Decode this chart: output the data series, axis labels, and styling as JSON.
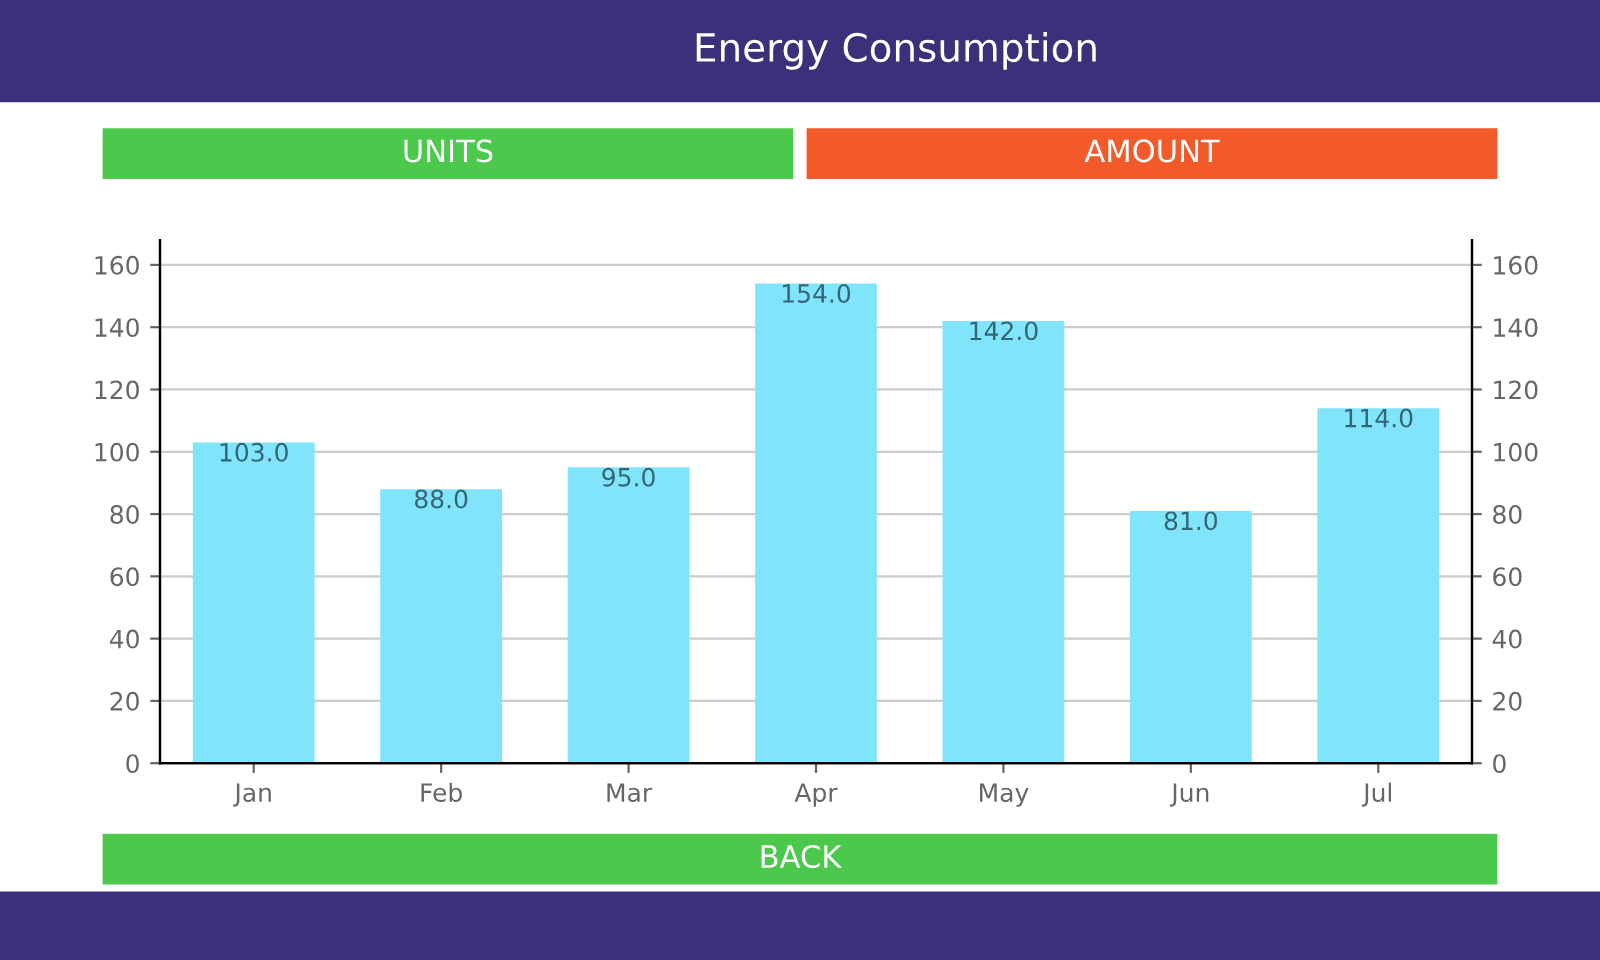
{
  "chart_data": {
    "type": "bar",
    "title": "Energy Consumption",
    "annotations": [
      "UNITS",
      "AMOUNT",
      "BACK"
    ],
    "categories": [
      "Jan",
      "Feb",
      "Mar",
      "Apr",
      "May",
      "Jun",
      "Jul"
    ],
    "values": [
      103,
      88,
      95,
      154,
      142,
      81,
      114
    ],
    "value_labels": [
      "103.0",
      "88.0",
      "95.0",
      "154.0",
      "142.0",
      "81.0",
      "114.0"
    ],
    "color": "#80e5fb",
    "ylim": [
      0,
      168
    ],
    "yticks": [
      0,
      20,
      40,
      60,
      80,
      100,
      120,
      140,
      160
    ],
    "y2lim": [
      0,
      168
    ],
    "y2ticks": [
      0,
      20,
      40,
      60,
      80,
      100,
      120,
      140,
      160
    ],
    "grid": "y"
  }
}
